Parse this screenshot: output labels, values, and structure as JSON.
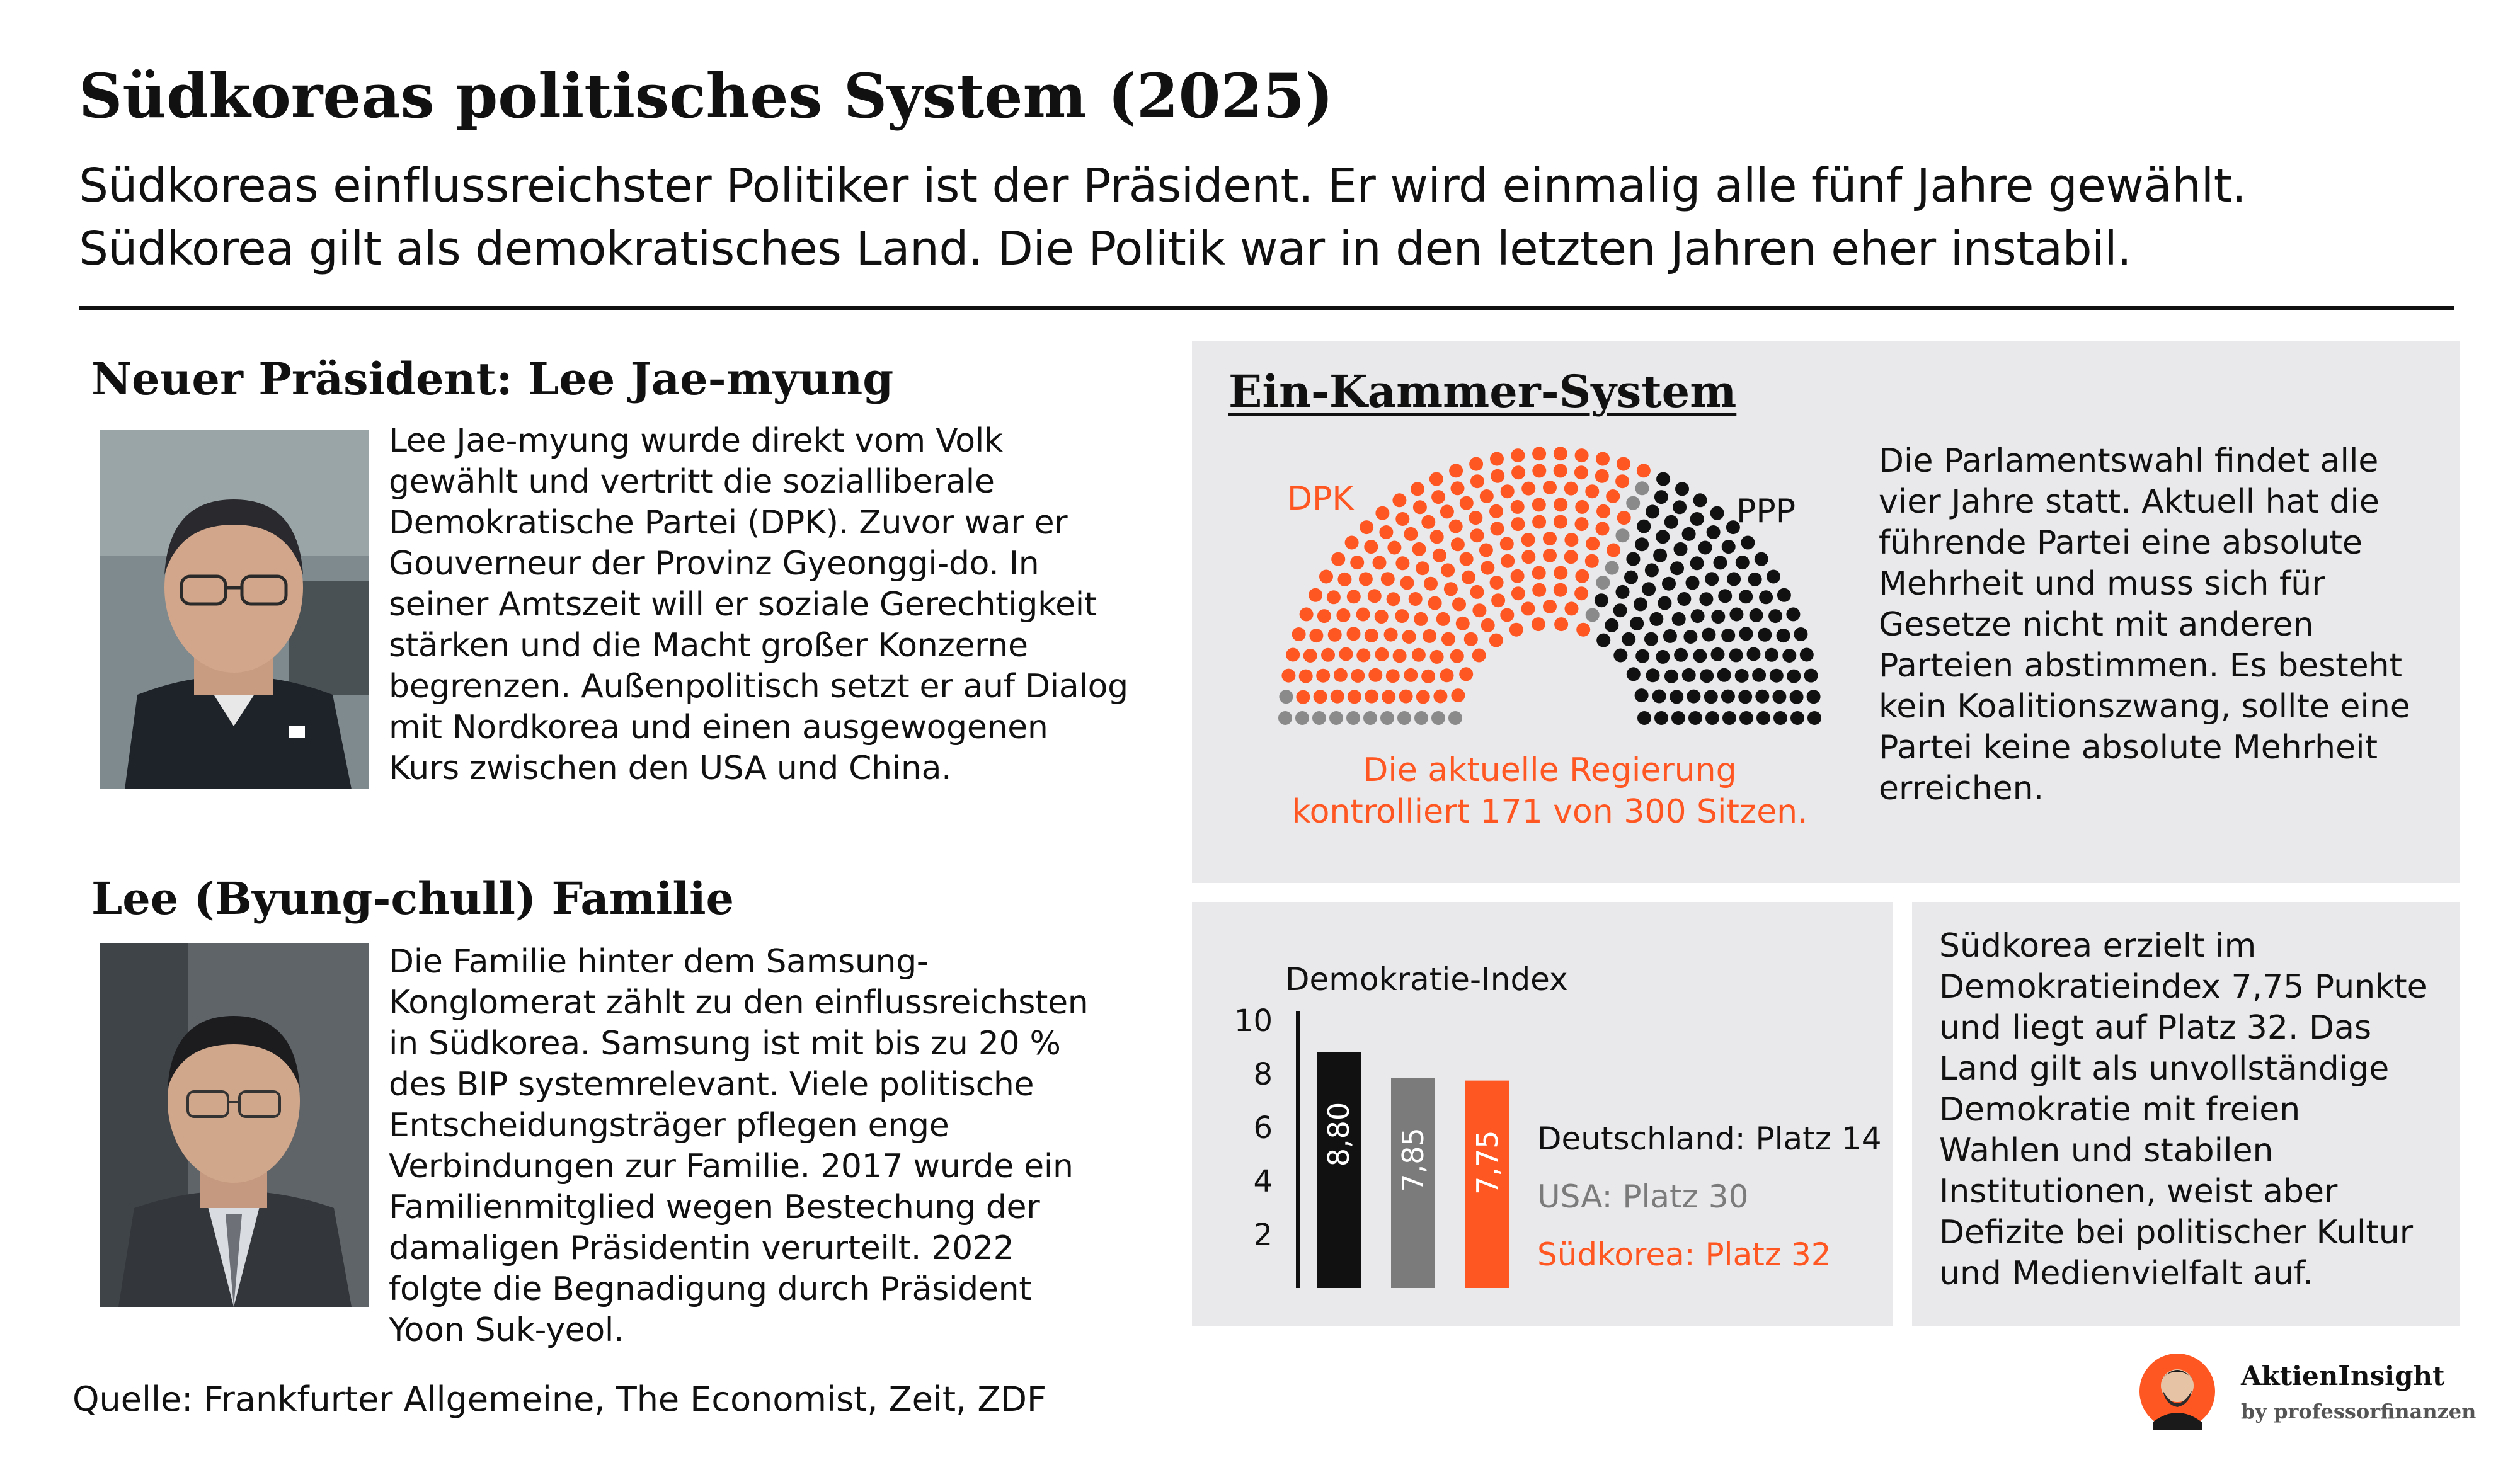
{
  "header": {
    "title": "Südkoreas politisches System (2025)",
    "subtitle_line1": "Südkoreas einflussreichster Politiker ist der Präsident. Er wird einmalig alle fünf Jahre gewählt.",
    "subtitle_line2": "Südkorea gilt als demokratisches Land. Die Politik war in den letzten Jahren eher instabil."
  },
  "president": {
    "heading": "Neuer Präsident: Lee Jae-myung",
    "text": "Lee Jae-myung wurde direkt vom Volk\ngewählt und vertritt die sozialliberale\nDemokratische Partei (DPK). Zuvor war er\nGouverneur der Provinz Gyeonggi-do. In\nseiner Amtszeit will er soziale Gerechtigkeit\nstärken und die Macht großer Konzerne\nbegrenzen. Außenpolitisch setzt er auf Dialog\nmit Nordkorea und einen ausgewogenen\nKurs zwischen den USA und China."
  },
  "family": {
    "heading": "Lee (Byung-chull) Familie",
    "text": "Die Familie hinter dem Samsung-\nKonglomerat zählt zu den einflussreichsten\nin Südkorea. Samsung ist mit bis zu 20 %\ndes BIP systemrelevant. Viele politische\nEntscheidungsträger pflegen enge\nVerbindungen zur Familie. 2017 wurde ein\nFamilienmitglied wegen Bestechung der\ndamaligen Präsidentin verurteilt. 2022\nfolgte die Begnadigung durch Präsident\nYoon Suk-yeol."
  },
  "parliament": {
    "heading": "Ein-Kammer-System",
    "left_party": "DPK",
    "right_party": "PPP",
    "caption": "Die aktuelle Regierung\nkontrolliert 171 von 300 Sitzen.",
    "text": "Die Parlamentswahl findet alle\nvier Jahre statt. Aktuell hat die\nführende Partei eine absolute\nMehrheit und muss sich für\nGesetze nicht mit anderen\nParteien abstimmen. Es besteht\nkein Koalitionszwang, sollte eine\nPartei keine absolute Mehrheit\nerreichen.",
    "seats": {
      "total": 300,
      "government": 171
    },
    "colors": {
      "dpk": "#ff5722",
      "ppp": "#111111",
      "other": "#8a8a8a"
    }
  },
  "chart_data": {
    "type": "bar",
    "title": "Demokratie-Index",
    "categories": [
      "Deutschland",
      "USA",
      "Südkorea"
    ],
    "values": [
      8.8,
      7.85,
      7.75
    ],
    "value_labels": [
      "8,80",
      "7,85",
      "7,75"
    ],
    "y_ticks": [
      "2",
      "4",
      "6",
      "8",
      "10"
    ],
    "ylim": [
      0,
      10
    ],
    "colors": [
      "#111111",
      "#7b7b7b",
      "#ff5722"
    ],
    "legend": [
      "Deutschland: Platz 14",
      "USA: Platz 30",
      "Südkorea: Platz 32"
    ],
    "legend_colors": [
      "#111111",
      "#7b7b7b",
      "#ff5722"
    ],
    "grid": false
  },
  "democracy_text": "Südkorea erzielt im\nDemokratieindex 7,75 Punkte\nund liegt auf Platz 32. Das\nLand gilt als unvollständige\nDemokratie mit freien\nWahlen und stabilen\nInstitutionen, weist aber\nDefizite bei politischer Kultur\nund Medienvielfalt auf.",
  "source": "Quelle: Frankfurter Allgemeine, The Economist, Zeit, ZDF",
  "brand": {
    "name": "AktienInsight",
    "sub": "by professorfinanzen",
    "accent": "#ff5722"
  }
}
